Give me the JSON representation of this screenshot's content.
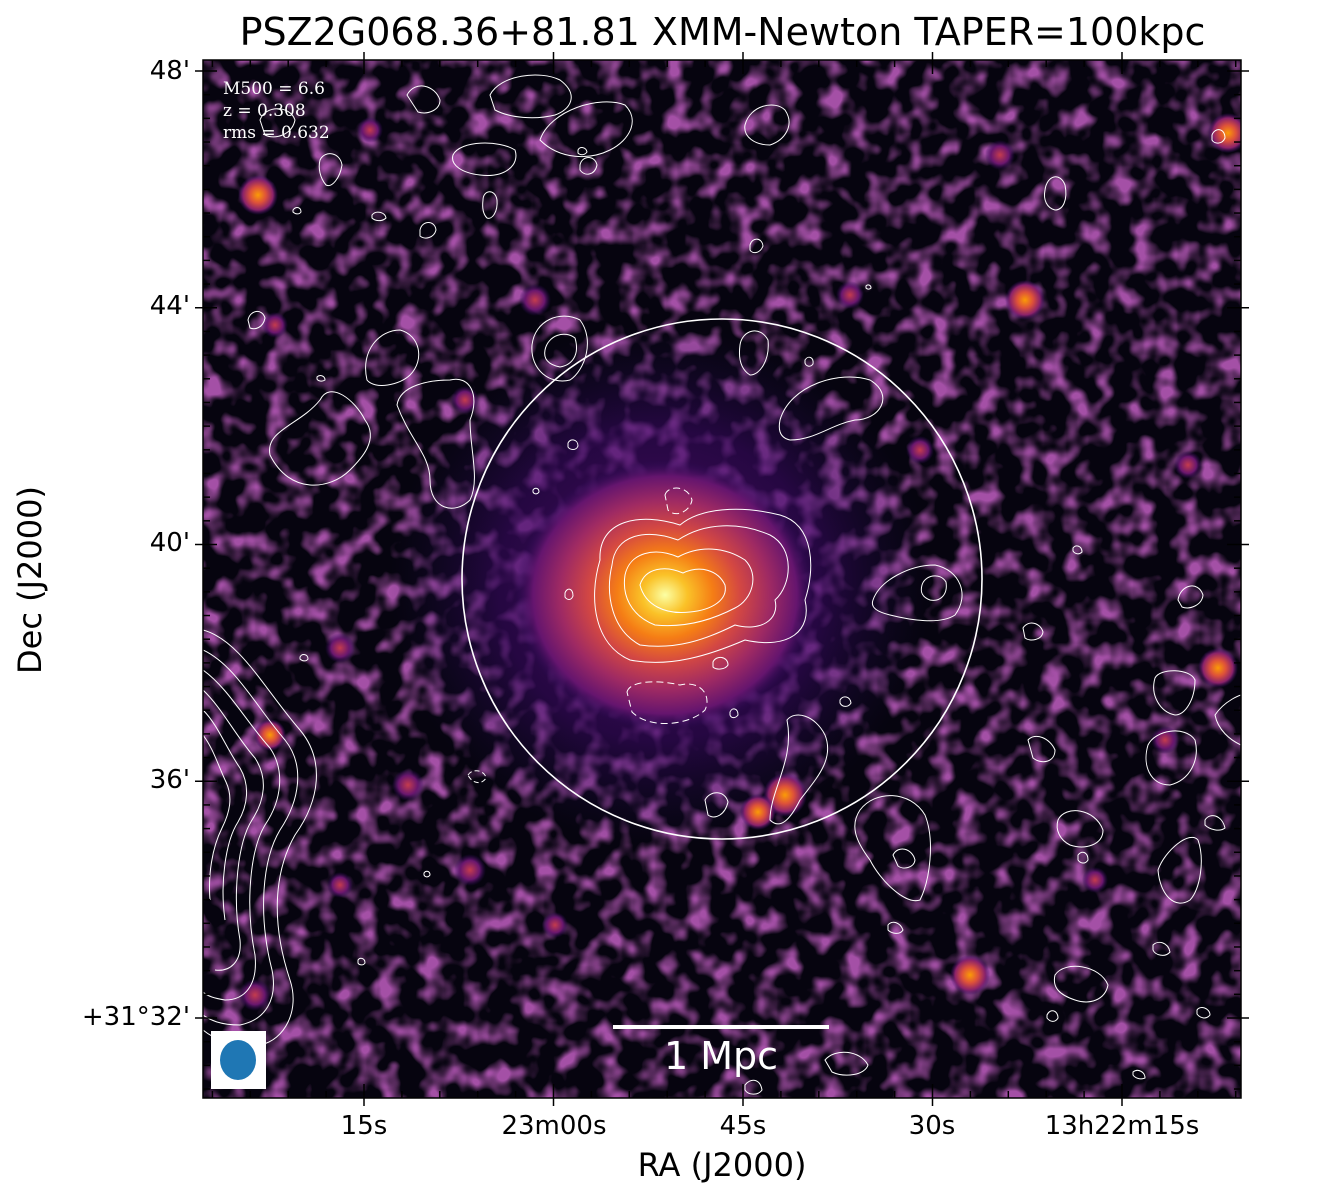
{
  "figure": {
    "title": "PSZ2G068.36+81.81 XMM-Newton TAPER=100kpc",
    "xlabel": "RA (J2000)",
    "ylabel": "Dec (J2000)",
    "x_ticks": [
      "15s",
      "23m00s",
      "45s",
      "30s",
      "13h22m15s"
    ],
    "y_ticks": [
      "48'",
      "44'",
      "40'",
      "36'",
      "+31°32'"
    ],
    "annotations": {
      "m500": "M500 = 6.6",
      "z": "z = 0.308",
      "rms": "rms = 0.632"
    },
    "scalebar": "1 Mpc",
    "colors": {
      "colormap": "inferno",
      "contours": "#ffffff",
      "beam": "#1f77b4"
    }
  }
}
